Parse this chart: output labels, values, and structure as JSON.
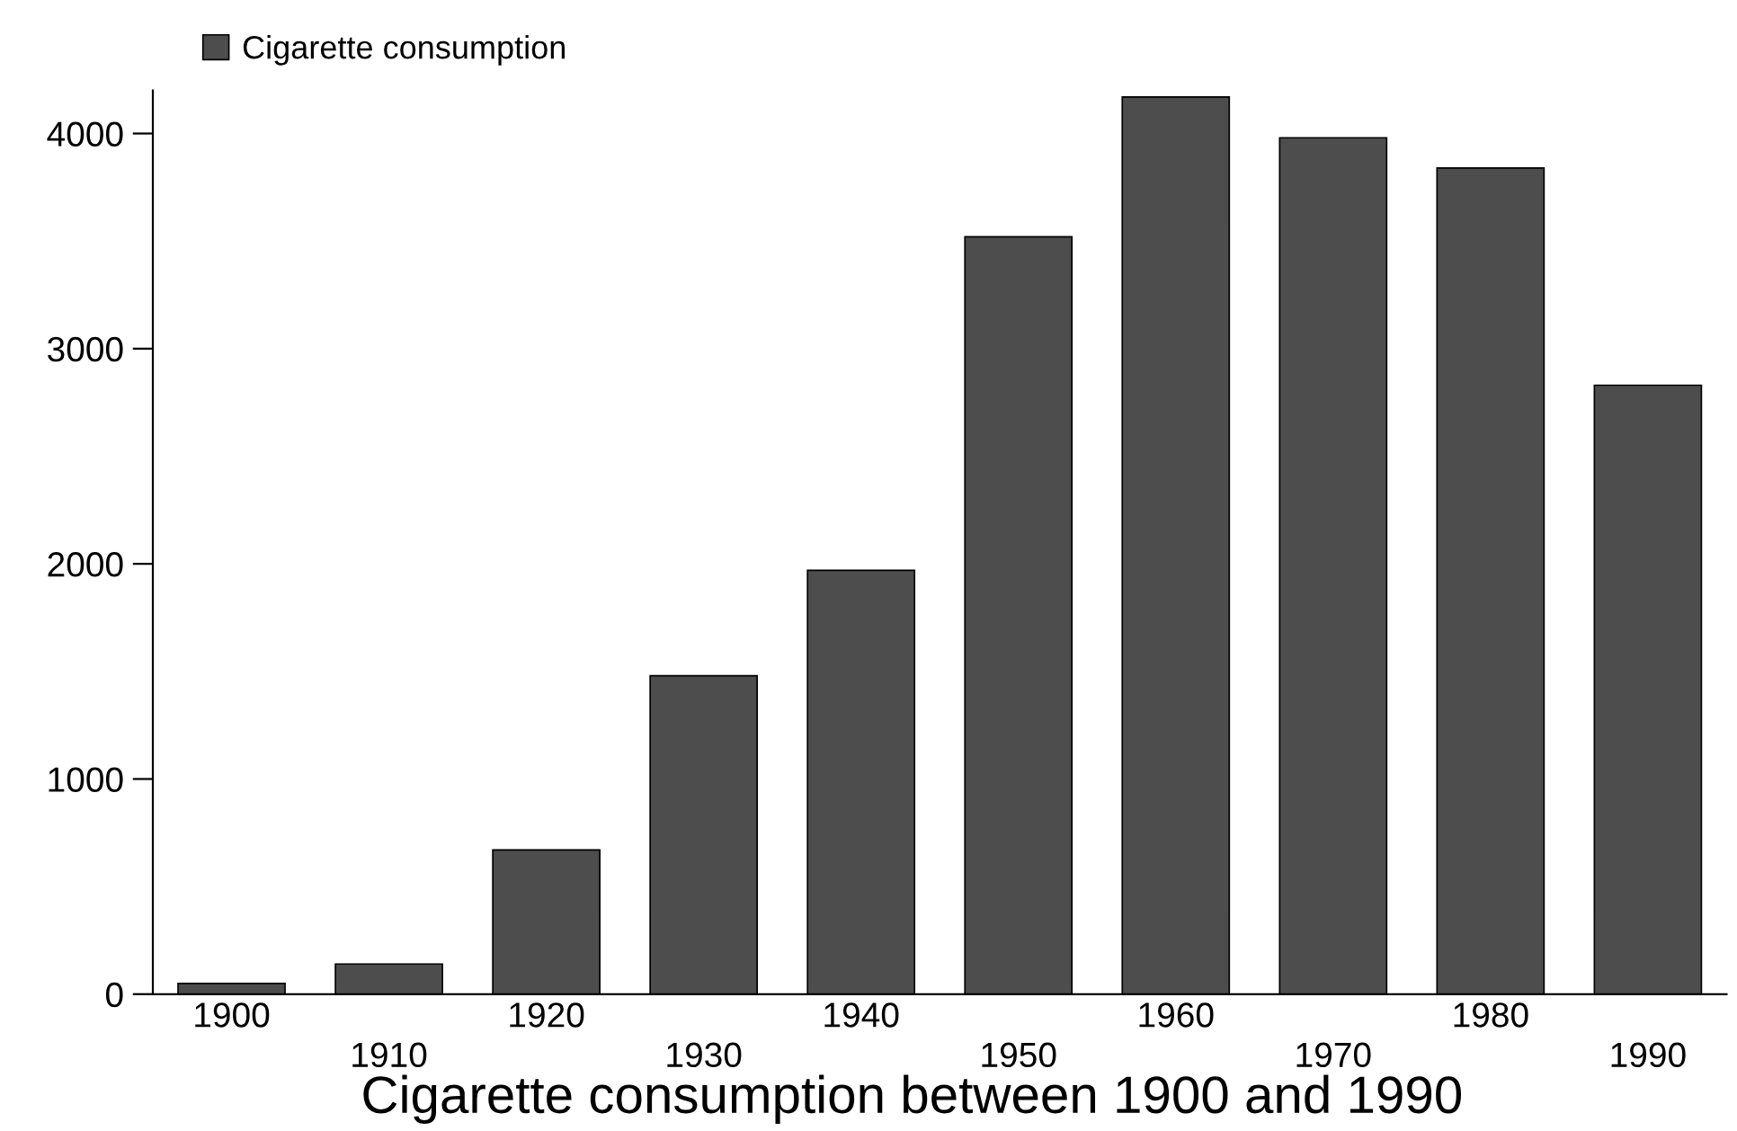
{
  "chart_data": {
    "type": "bar",
    "title": "Cigarette consumption between 1900 and 1990",
    "categories": [
      "1900",
      "1910",
      "1920",
      "1930",
      "1940",
      "1950",
      "1960",
      "1970",
      "1980",
      "1990"
    ],
    "series": [
      {
        "name": "Cigarette consumption",
        "color": "#4d4d4d",
        "values": [
          50,
          140,
          670,
          1480,
          1970,
          3520,
          4170,
          3980,
          3840,
          2830
        ]
      }
    ],
    "ylim": [
      0,
      4200
    ],
    "yticks": [
      0,
      1000,
      2000,
      3000,
      4000
    ],
    "grid": false,
    "legend": "top left"
  }
}
